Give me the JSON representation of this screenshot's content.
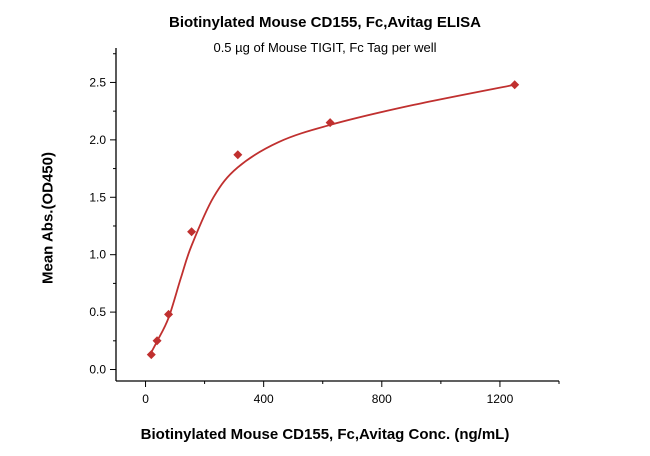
{
  "chart_data": {
    "type": "scatter",
    "title": "Biotinylated Mouse CD155, Fc,Avitag ELISA",
    "subtitle": "0.5 µg of Mouse TIGIT, Fc Tag per well",
    "xlabel": "Biotinylated Mouse CD155, Fc,Avitag Conc. (ng/mL)",
    "ylabel": "Mean Abs.(OD450)",
    "xlim": [
      -100,
      1400
    ],
    "ylim": [
      -0.1,
      2.8
    ],
    "xticks": [
      0,
      400,
      800,
      1200
    ],
    "xtick_labels": [
      "0",
      "400",
      "800",
      "1200"
    ],
    "yticks": [
      0,
      0.5,
      1.0,
      1.5,
      2.0,
      2.5
    ],
    "ytick_labels": [
      "0.0",
      "0.5",
      "1.0",
      "1.5",
      "2.0",
      "2.5"
    ],
    "grid": false,
    "color": "#c0302f",
    "points": {
      "x": [
        19.5,
        39,
        78,
        156,
        312.5,
        625,
        1250
      ],
      "y": [
        0.13,
        0.25,
        0.48,
        1.2,
        1.87,
        2.15,
        2.48
      ]
    },
    "fit_curve": {
      "x": [
        19.5,
        40,
        78,
        120,
        156,
        230,
        312,
        450,
        625,
        900,
        1250
      ],
      "y": [
        0.15,
        0.25,
        0.45,
        0.8,
        1.08,
        1.5,
        1.76,
        1.98,
        2.13,
        2.3,
        2.48
      ]
    }
  }
}
